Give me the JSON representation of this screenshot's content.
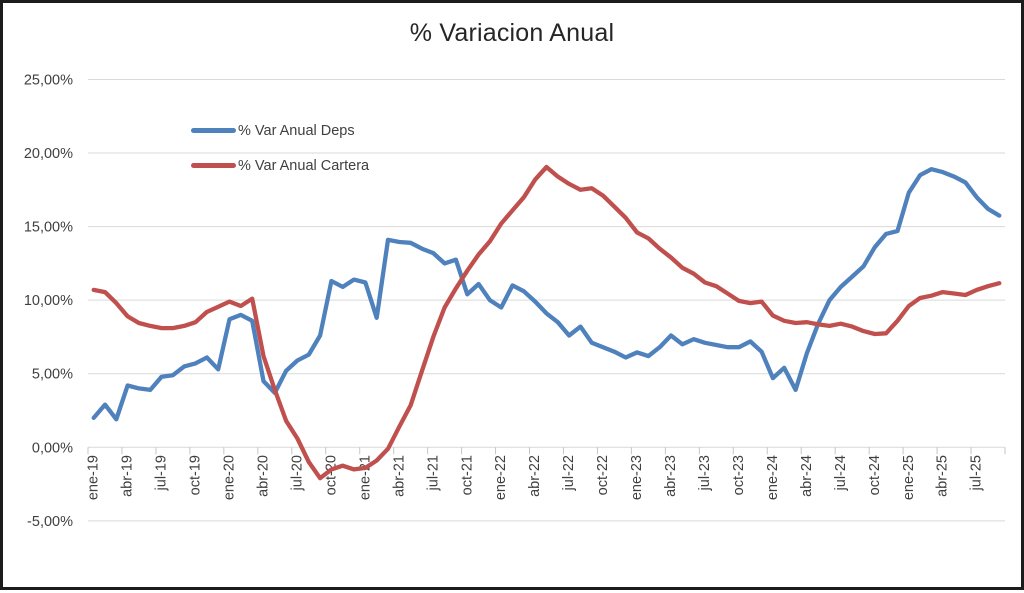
{
  "title": "% Variacion Anual",
  "legend": [
    {
      "label": "% Var Anual Deps",
      "color": "#4F81BD"
    },
    {
      "label": "% Var Anual Cartera",
      "color": "#C0504D"
    }
  ],
  "axis": {
    "y_tick_labels": [
      "25,00%",
      "20,00%",
      "15,00%",
      "10,00%",
      "5,00%",
      "0,00%",
      "-5,00%"
    ],
    "text_color": "#404040",
    "gridline_color": "#D9D9D9"
  },
  "chart_data": {
    "type": "line",
    "title": "% Variacion Anual",
    "xlabel": "",
    "ylabel": "",
    "ylim": [
      -5,
      25
    ],
    "y_tick_step": 5,
    "grid": true,
    "legend_position": "inside-top-left",
    "x_label_every": 3,
    "x": [
      "ene-19",
      "feb-19",
      "mar-19",
      "abr-19",
      "may-19",
      "jun-19",
      "jul-19",
      "ago-19",
      "sep-19",
      "oct-19",
      "nov-19",
      "dic-19",
      "ene-20",
      "feb-20",
      "mar-20",
      "abr-20",
      "may-20",
      "jun-20",
      "jul-20",
      "ago-20",
      "sep-20",
      "oct-20",
      "nov-20",
      "dic-20",
      "ene-21",
      "feb-21",
      "mar-21",
      "abr-21",
      "may-21",
      "jun-21",
      "jul-21",
      "ago-21",
      "sep-21",
      "oct-21",
      "nov-21",
      "dic-21",
      "ene-22",
      "feb-22",
      "mar-22",
      "abr-22",
      "may-22",
      "jun-22",
      "jul-22",
      "ago-22",
      "sep-22",
      "oct-22",
      "nov-22",
      "dic-22",
      "ene-23",
      "feb-23",
      "mar-23",
      "abr-23",
      "may-23",
      "jun-23",
      "jul-23",
      "ago-23",
      "sep-23",
      "oct-23",
      "nov-23",
      "dic-23",
      "ene-24",
      "feb-24",
      "mar-24",
      "abr-24",
      "may-24",
      "jun-24",
      "jul-24",
      "ago-24",
      "sep-24",
      "oct-24",
      "nov-24",
      "dic-24",
      "ene-25",
      "feb-25",
      "mar-25",
      "abr-25",
      "may-25",
      "jun-25",
      "jul-25",
      "ago-25",
      "sep-25"
    ],
    "series": [
      {
        "name": "% Var Anual Deps",
        "color": "#4F81BD",
        "values": [
          2.0,
          2.9,
          1.9,
          4.2,
          4.0,
          3.9,
          4.8,
          4.9,
          5.5,
          5.7,
          6.1,
          5.3,
          8.7,
          9.0,
          8.6,
          4.5,
          3.7,
          5.2,
          5.9,
          6.3,
          7.6,
          11.3,
          10.9,
          11.4,
          11.2,
          8.8,
          14.1,
          13.95,
          13.9,
          13.5,
          13.2,
          12.5,
          12.75,
          10.4,
          11.1,
          10.0,
          9.5,
          11.0,
          10.6,
          9.9,
          9.1,
          8.5,
          7.6,
          8.2,
          7.1,
          6.8,
          6.5,
          6.1,
          6.45,
          6.2,
          6.8,
          7.6,
          7.0,
          7.35,
          7.1,
          6.95,
          6.8,
          6.8,
          7.2,
          6.5,
          4.7,
          5.4,
          3.9,
          6.4,
          8.4,
          10.0,
          10.9,
          11.6,
          12.3,
          13.6,
          14.5,
          14.7,
          17.3,
          18.5,
          18.9,
          18.7,
          18.4,
          18.0,
          17.0,
          16.2,
          15.75
        ]
      },
      {
        "name": "% Var Anual Cartera",
        "color": "#C0504D",
        "values": [
          10.7,
          10.55,
          9.8,
          8.9,
          8.45,
          8.25,
          8.1,
          8.1,
          8.25,
          8.5,
          9.2,
          9.55,
          9.9,
          9.6,
          10.1,
          6.2,
          3.9,
          1.8,
          0.6,
          -1.0,
          -2.1,
          -1.5,
          -1.25,
          -1.5,
          -1.4,
          -0.9,
          -0.1,
          1.4,
          2.85,
          5.2,
          7.5,
          9.5,
          10.8,
          12.0,
          13.1,
          14.0,
          15.2,
          16.1,
          17.0,
          18.2,
          19.05,
          18.4,
          17.9,
          17.5,
          17.6,
          17.1,
          16.35,
          15.6,
          14.6,
          14.2,
          13.5,
          12.9,
          12.2,
          11.8,
          11.2,
          10.95,
          10.45,
          9.95,
          9.8,
          9.9,
          8.95,
          8.6,
          8.45,
          8.5,
          8.35,
          8.25,
          8.4,
          8.2,
          7.9,
          7.7,
          7.75,
          8.6,
          9.6,
          10.15,
          10.3,
          10.55,
          10.45,
          10.35,
          10.7,
          10.95,
          11.15
        ]
      }
    ]
  }
}
